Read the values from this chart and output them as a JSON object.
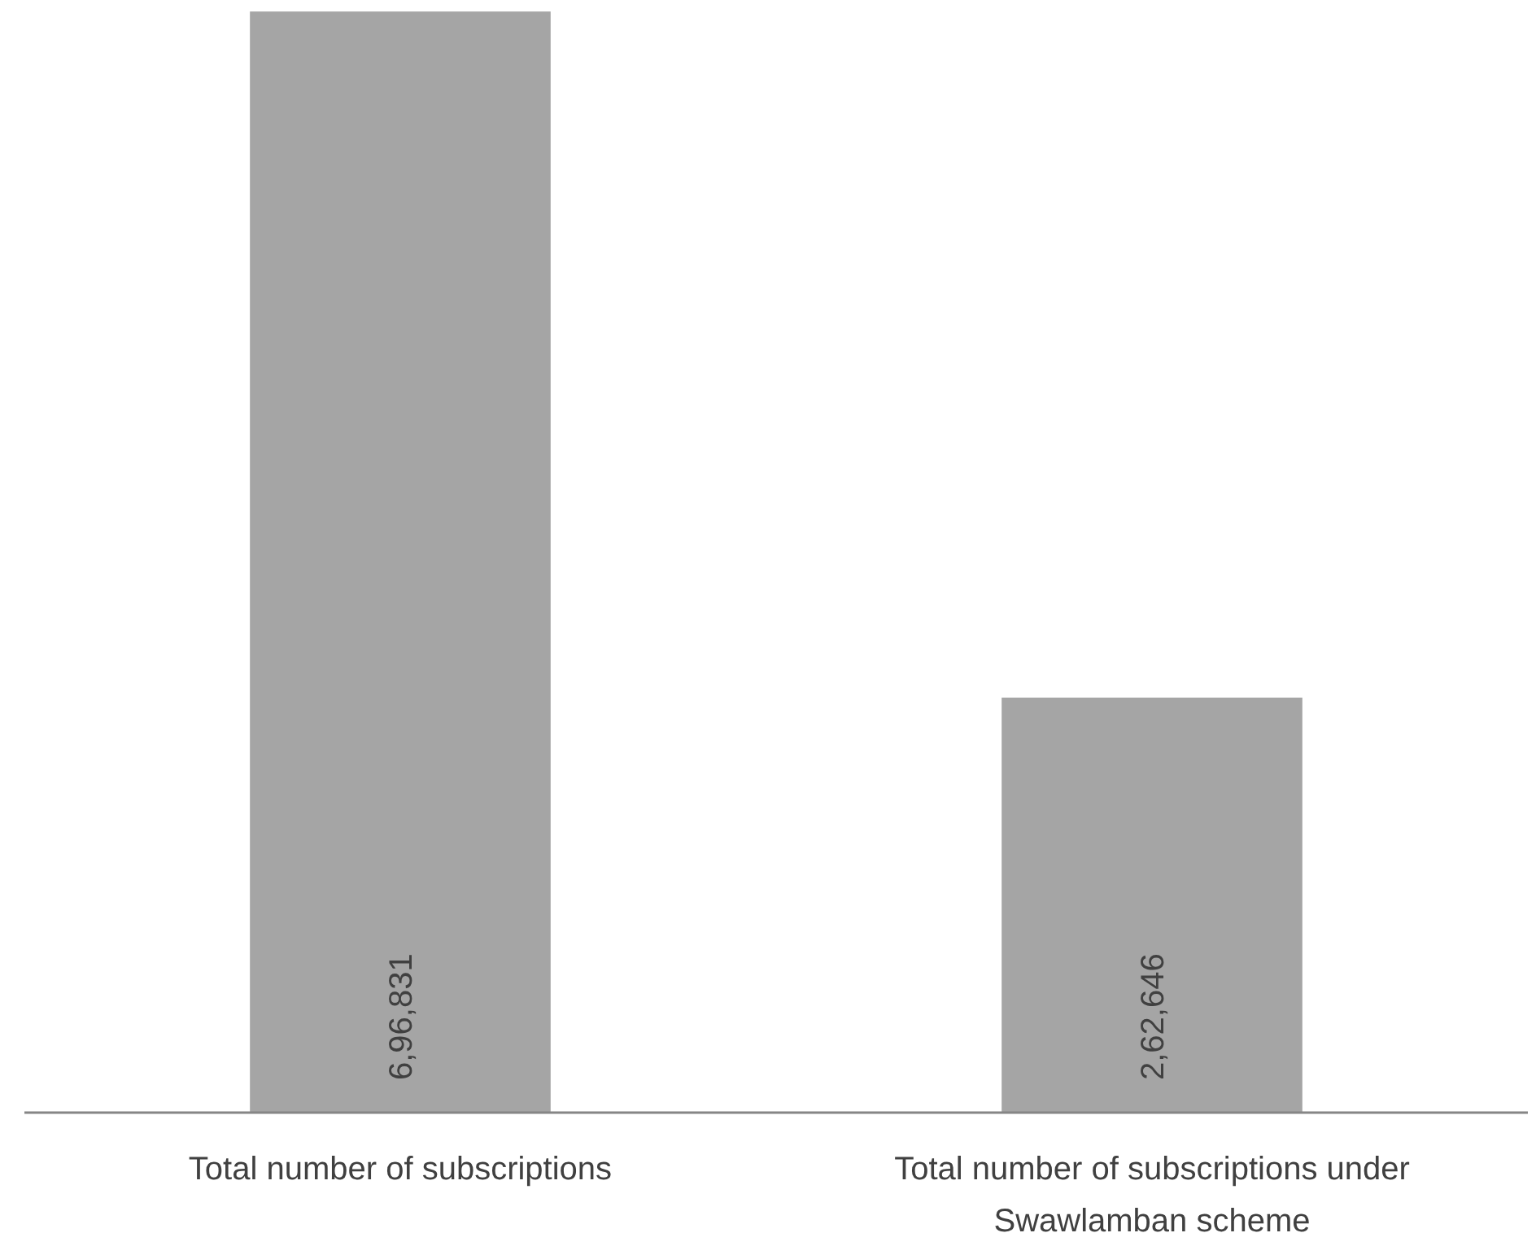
{
  "chart_data": {
    "type": "bar",
    "categories": [
      "Total number of subscriptions",
      "Total number of subscriptions under Swawlamban scheme"
    ],
    "values": [
      696831,
      262646
    ],
    "value_labels": [
      "6,96,831",
      "2,62,646"
    ],
    "color": "#a5a5a5",
    "ylim": [
      0,
      700000
    ],
    "tick_labels": "x"
  }
}
